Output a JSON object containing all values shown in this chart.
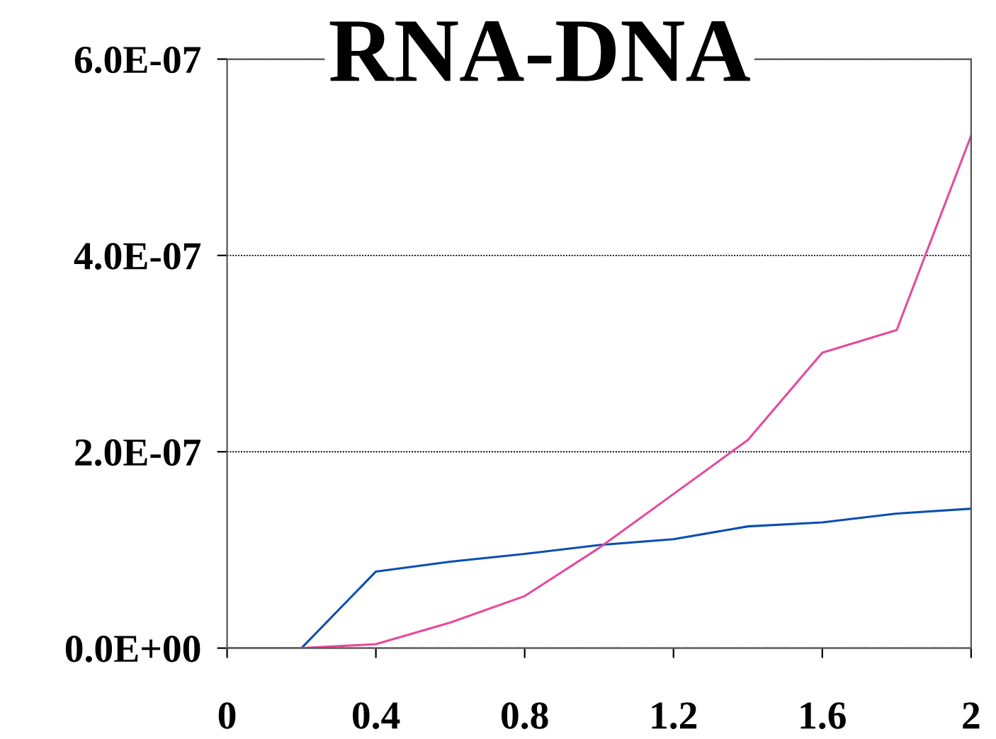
{
  "chart_data": {
    "type": "line",
    "title": "RNA-DNA",
    "x": [
      0,
      0.2,
      0.4,
      0.6,
      0.8,
      1.0,
      1.2,
      1.4,
      1.6,
      1.8,
      2.0
    ],
    "series": [
      {
        "color": "#0a4fb0",
        "values": [
          0,
          0,
          7.8e-08,
          8.8e-08,
          9.6e-08,
          1.05e-07,
          1.11e-07,
          1.24e-07,
          1.28e-07,
          1.37e-07,
          1.42e-07
        ]
      },
      {
        "color": "#e8489c",
        "values": [
          0,
          0,
          4e-09,
          2.6e-08,
          5.3e-08,
          1.02e-07,
          1.57e-07,
          2.12e-07,
          3.01e-07,
          3.24e-07,
          5.22e-07
        ]
      }
    ],
    "xlim": [
      0,
      2
    ],
    "xticks": [
      0,
      0.4,
      0.8,
      1.2,
      1.6,
      2
    ],
    "ylim": [
      0,
      6e-07
    ],
    "yticks": [
      {
        "value": 0,
        "label": "0.0E+00"
      },
      {
        "value": 2e-07,
        "label": "2.0E-07"
      },
      {
        "value": 4e-07,
        "label": "4.0E-07"
      },
      {
        "value": 6e-07,
        "label": "6.0E-07"
      }
    ],
    "grid": "y",
    "marker": "none",
    "line_style": "solid"
  }
}
